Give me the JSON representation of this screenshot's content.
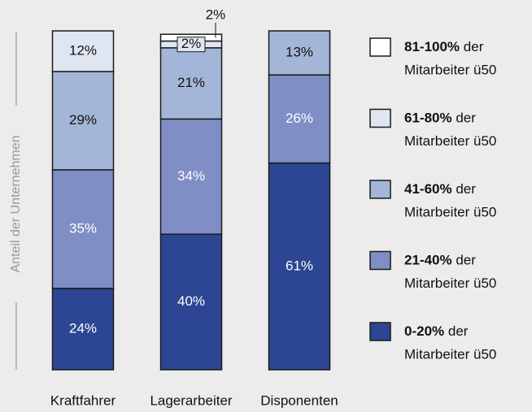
{
  "chart_data": {
    "type": "stacked-bar",
    "axis_label": "Anteil der Unternehmen",
    "categories": [
      "Kraftfahrer",
      "Lagerarbeiter",
      "Disponenten"
    ],
    "legend_suffix": "der Mitarbeiter ü50",
    "series": [
      {
        "name": "0-20%",
        "color": "#2c4693",
        "label_color": "#ffffff",
        "values": [
          24,
          40,
          61
        ],
        "value_labels": [
          "24%",
          "40%",
          "61%"
        ]
      },
      {
        "name": "21-40%",
        "color": "#7f8ec4",
        "label_color": "#ffffff",
        "values": [
          35,
          34,
          26
        ],
        "value_labels": [
          "35%",
          "34%",
          "26%"
        ]
      },
      {
        "name": "41-60%",
        "color": "#a4b6d7",
        "label_color": "#111111",
        "values": [
          29,
          21,
          13
        ],
        "value_labels": [
          "29%",
          "21%",
          "13%"
        ]
      },
      {
        "name": "61-80%",
        "color": "#dfe6f1",
        "label_color": "#111111",
        "values": [
          12,
          2,
          null
        ],
        "value_labels": [
          "12%",
          "2%",
          null
        ]
      },
      {
        "name": "81-100%",
        "color": "#ffffff",
        "label_color": "#111111",
        "values": [
          null,
          2,
          null
        ],
        "value_labels": [
          null,
          "2%",
          null
        ]
      }
    ]
  }
}
